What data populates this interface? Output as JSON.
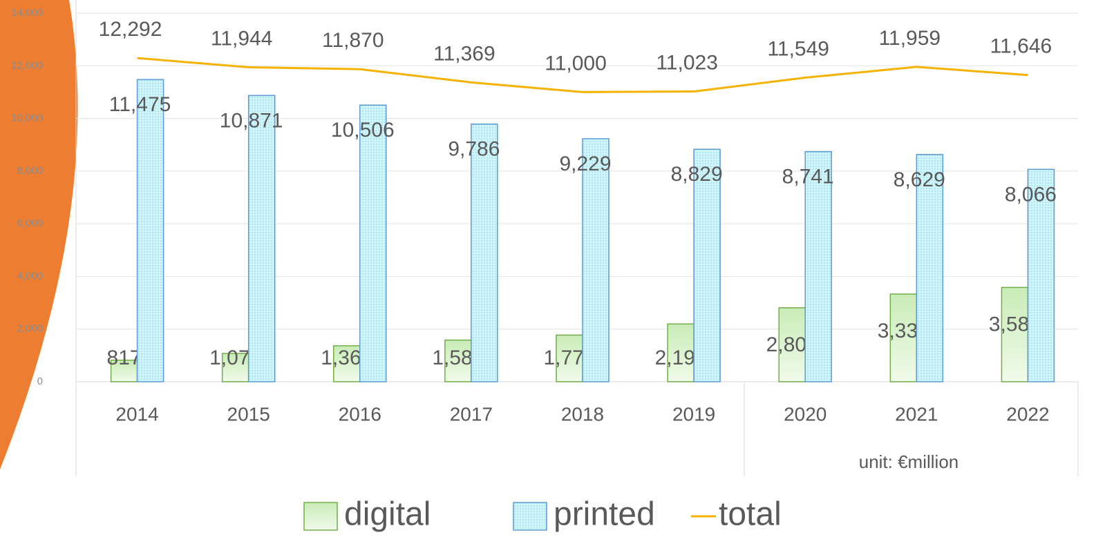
{
  "chart_data": {
    "type": "bar",
    "categories": [
      "2014",
      "2015",
      "2016",
      "2017",
      "2018",
      "2019",
      "2020",
      "2021",
      "2022"
    ],
    "series": [
      {
        "name": "digital",
        "color": "#70ad47",
        "values": [
          817,
          1073,
          1364,
          1582,
          1771,
          2194,
          2808,
          3330,
          3581
        ],
        "value_labels": [
          "817",
          "1,073",
          "1,364",
          "1,582",
          "1,771",
          "2,194",
          "2,808",
          "3,330",
          "3,581"
        ]
      },
      {
        "name": "printed",
        "color": "#5b9bd5",
        "values": [
          11475,
          10871,
          10506,
          9786,
          9229,
          8829,
          8741,
          8629,
          8066
        ],
        "value_labels": [
          "11,475",
          "10,871",
          "10,506",
          "9,786",
          "9,229",
          "8,829",
          "8,741",
          "8,629",
          "8,066"
        ]
      },
      {
        "name": "total",
        "type": "line",
        "color": "#f5b300",
        "values": [
          12292,
          11944,
          11870,
          11369,
          11000,
          11023,
          11549,
          11959,
          11646
        ],
        "value_labels": [
          "12,292",
          "11,944",
          "11,870",
          "11,369",
          "11,000",
          "11,023",
          "11,549",
          "11,959",
          "11,646"
        ]
      }
    ],
    "annotation": "unit: €million",
    "ylim": [
      0,
      14000
    ],
    "yticks": [
      0,
      {
        "value": 2000,
        "label": "2,000"
      },
      {
        "value": 4000,
        "label": "4,000"
      },
      {
        "value": 6000,
        "label": "6,000"
      },
      {
        "value": 8000,
        "label": "8,000"
      },
      {
        "value": 10000,
        "label": "10,000"
      },
      {
        "value": 12000,
        "label": "12,000"
      },
      {
        "value": 14000,
        "label": "14,000"
      }
    ],
    "grid": true,
    "legend": "bottom"
  }
}
